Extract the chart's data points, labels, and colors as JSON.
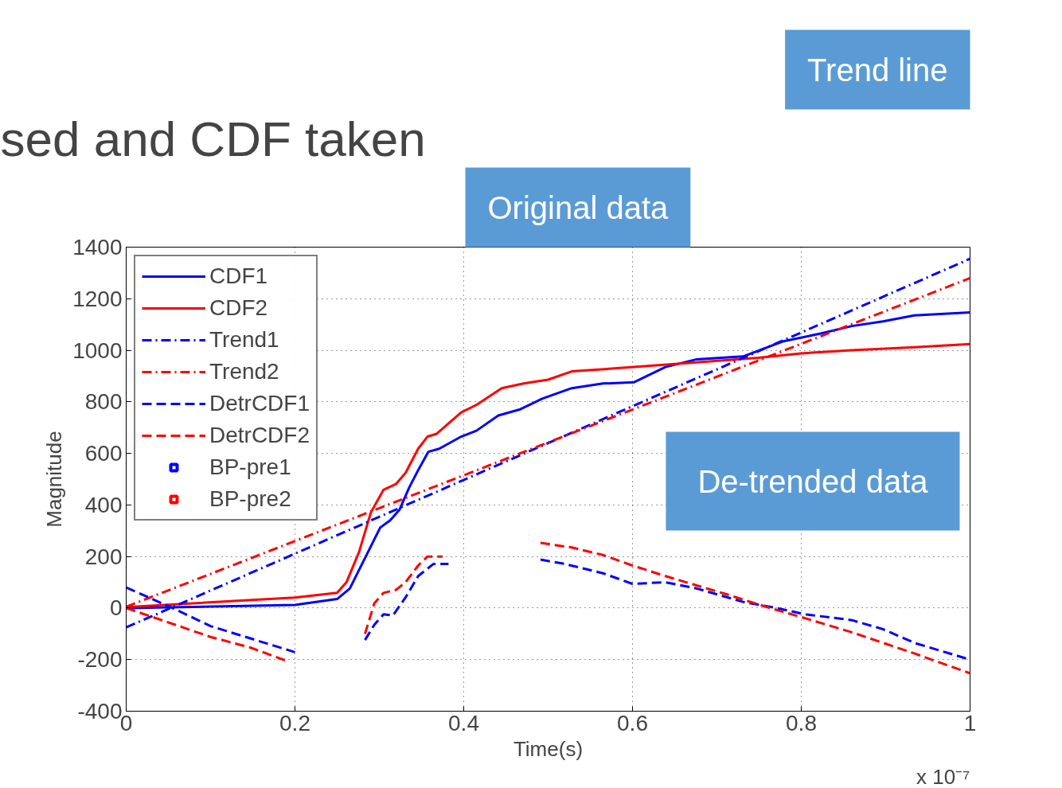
{
  "chart_data": {
    "type": "line",
    "title": "sed and CDF taken",
    "xlabel": "Time(s)",
    "ylabel": "Magnitude",
    "annotations": [
      "Original data",
      "Trend line",
      "De-trended data",
      "x 10⁻⁷"
    ],
    "xlim": [
      0,
      1
    ],
    "ylim": [
      -400,
      1400
    ],
    "xticks": [
      0,
      0.2,
      0.4,
      0.6,
      0.8,
      1
    ],
    "yticks": [
      -400,
      -200,
      0,
      200,
      400,
      600,
      800,
      1000,
      1200,
      1400
    ],
    "grid": true,
    "legend": "top left",
    "series": [
      {
        "name": "CDF1",
        "color": "#0000ff",
        "line_style": "solid",
        "x": [
          0,
          0.2,
          0.25,
          0.265,
          0.283,
          0.301,
          0.313,
          0.324,
          0.335,
          0.346,
          0.358,
          0.371,
          0.397,
          0.415,
          0.441,
          0.467,
          0.493,
          0.528,
          0.565,
          0.602,
          0.639,
          0.676,
          0.731,
          0.779,
          0.823,
          0.86,
          0.897,
          0.934,
          1.0
        ],
        "values": [
          0,
          12,
          35,
          76,
          194,
          312,
          341,
          382,
          465,
          535,
          606,
          618,
          665,
          688,
          747,
          771,
          812,
          853,
          871,
          876,
          935,
          965,
          976,
          1035,
          1065,
          1094,
          1112,
          1135,
          1147
        ]
      },
      {
        "name": "CDF2",
        "color": "#ff0000",
        "line_style": "solid",
        "x": [
          0,
          0.2,
          0.25,
          0.261,
          0.276,
          0.29,
          0.305,
          0.32,
          0.331,
          0.346,
          0.357,
          0.368,
          0.397,
          0.415,
          0.445,
          0.471,
          0.5,
          0.528,
          0.602,
          0.676,
          0.749,
          0.8,
          0.86,
          0.934,
          1.0
        ],
        "values": [
          4,
          41,
          59,
          100,
          218,
          371,
          459,
          482,
          524,
          618,
          665,
          676,
          759,
          788,
          853,
          871,
          886,
          918,
          935,
          953,
          971,
          988,
          1000,
          1012,
          1024
        ]
      },
      {
        "name": "Trend1",
        "color": "#0000ff",
        "line_style": "dashdot",
        "x": [
          0,
          1
        ],
        "values": [
          -75,
          1355
        ]
      },
      {
        "name": "Trend2",
        "color": "#ff0000",
        "line_style": "dashdot",
        "x": [
          0,
          1
        ],
        "values": [
          5,
          1280
        ]
      },
      {
        "name": "DetrCDF1",
        "color": "#0000ff",
        "line_style": "dashed",
        "x": [
          0,
          0.055,
          0.1,
          0.2,
          0.24,
          0.283,
          0.294,
          0.305,
          0.316,
          0.331,
          0.346,
          0.364,
          0.382,
          0.43,
          0.491,
          0.52,
          0.565,
          0.6,
          0.639,
          0.676,
          0.731,
          0.771,
          0.804,
          0.86,
          0.897,
          0.934,
          1.0
        ],
        "values": [
          80,
          0,
          -70,
          -171,
          null,
          -124,
          -65,
          -24,
          -29,
          41,
          124,
          171,
          171,
          null,
          188,
          171,
          135,
          94,
          100,
          76,
          24,
          0,
          -24,
          -47,
          -82,
          -135,
          -200
        ]
      },
      {
        "name": "DetrCDF2",
        "color": "#ff0000",
        "line_style": "dashed",
        "x": [
          0,
          0.037,
          0.1,
          0.147,
          0.191,
          0.24,
          0.283,
          0.294,
          0.305,
          0.32,
          0.331,
          0.346,
          0.357,
          0.375,
          0.43,
          0.491,
          0.528,
          0.565,
          0.6,
          0.639,
          0.676,
          0.712,
          0.757,
          0.8,
          0.86,
          0.934,
          1.0
        ],
        "values": [
          0,
          -41,
          -112,
          -153,
          -206,
          null,
          -100,
          18,
          59,
          71,
          100,
          165,
          200,
          200,
          null,
          253,
          235,
          206,
          165,
          124,
          88,
          53,
          6,
          -35,
          -94,
          -176,
          -253
        ]
      },
      {
        "name": "BP-pre1",
        "color": "#0000ff",
        "type": "scatter",
        "marker": "square",
        "values": [
          null
        ]
      },
      {
        "name": "BP-pre2",
        "color": "#ff0000",
        "type": "scatter",
        "marker": "square",
        "values": [
          null
        ]
      }
    ]
  }
}
